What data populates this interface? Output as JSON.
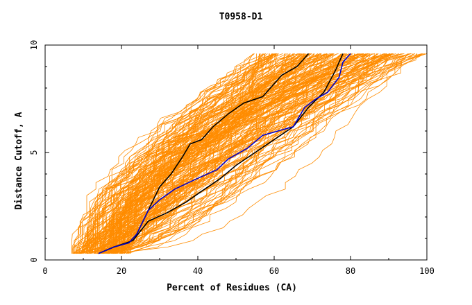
{
  "chart_data": {
    "type": "line",
    "title": "T0958-D1",
    "xlabel": "Percent of Residues (CA)",
    "ylabel": "Distance Cutoff, A",
    "xlim": [
      0,
      100
    ],
    "ylim": [
      0,
      10
    ],
    "xticks": [
      0,
      20,
      40,
      60,
      80,
      100
    ],
    "yticks": [
      0,
      5,
      10
    ],
    "grid": false,
    "legend": "none",
    "background_series_color": "#ff8c00",
    "series": [
      {
        "color": "#000000",
        "points": [
          [
            14,
            0.3
          ],
          [
            18,
            0.6
          ],
          [
            23,
            0.9
          ],
          [
            27,
            1.8
          ],
          [
            32,
            2.2
          ],
          [
            37,
            2.7
          ],
          [
            41,
            3.2
          ],
          [
            46,
            3.8
          ],
          [
            50,
            4.4
          ],
          [
            55,
            5.0
          ],
          [
            60,
            5.6
          ],
          [
            65,
            6.2
          ],
          [
            69,
            7.1
          ],
          [
            73,
            7.8
          ],
          [
            76,
            8.8
          ],
          [
            78,
            9.6
          ]
        ]
      },
      {
        "color": "#000000",
        "points": [
          [
            14,
            0.3
          ],
          [
            18,
            0.6
          ],
          [
            22,
            0.8
          ],
          [
            24,
            1.2
          ],
          [
            27,
            2.3
          ],
          [
            30,
            3.4
          ],
          [
            33,
            4.0
          ],
          [
            36,
            4.8
          ],
          [
            38,
            5.4
          ],
          [
            41,
            5.6
          ],
          [
            44,
            6.2
          ],
          [
            48,
            6.8
          ],
          [
            52,
            7.3
          ],
          [
            57,
            7.6
          ],
          [
            60,
            8.2
          ],
          [
            62,
            8.6
          ],
          [
            64,
            8.8
          ],
          [
            66,
            9.0
          ],
          [
            69,
            9.6
          ]
        ]
      },
      {
        "color": "#0000cc",
        "points": [
          [
            14,
            0.3
          ],
          [
            18,
            0.6
          ],
          [
            22,
            0.8
          ],
          [
            24,
            1.2
          ],
          [
            27,
            2.3
          ],
          [
            30,
            2.8
          ],
          [
            34,
            3.3
          ],
          [
            40,
            3.8
          ],
          [
            45,
            4.2
          ],
          [
            48,
            4.7
          ],
          [
            53,
            5.2
          ],
          [
            57,
            5.8
          ],
          [
            61,
            6.0
          ],
          [
            65,
            6.2
          ],
          [
            68,
            7.1
          ],
          [
            71,
            7.5
          ],
          [
            74,
            7.8
          ],
          [
            77,
            8.5
          ],
          [
            78,
            9.2
          ],
          [
            80,
            9.6
          ]
        ]
      }
    ]
  }
}
